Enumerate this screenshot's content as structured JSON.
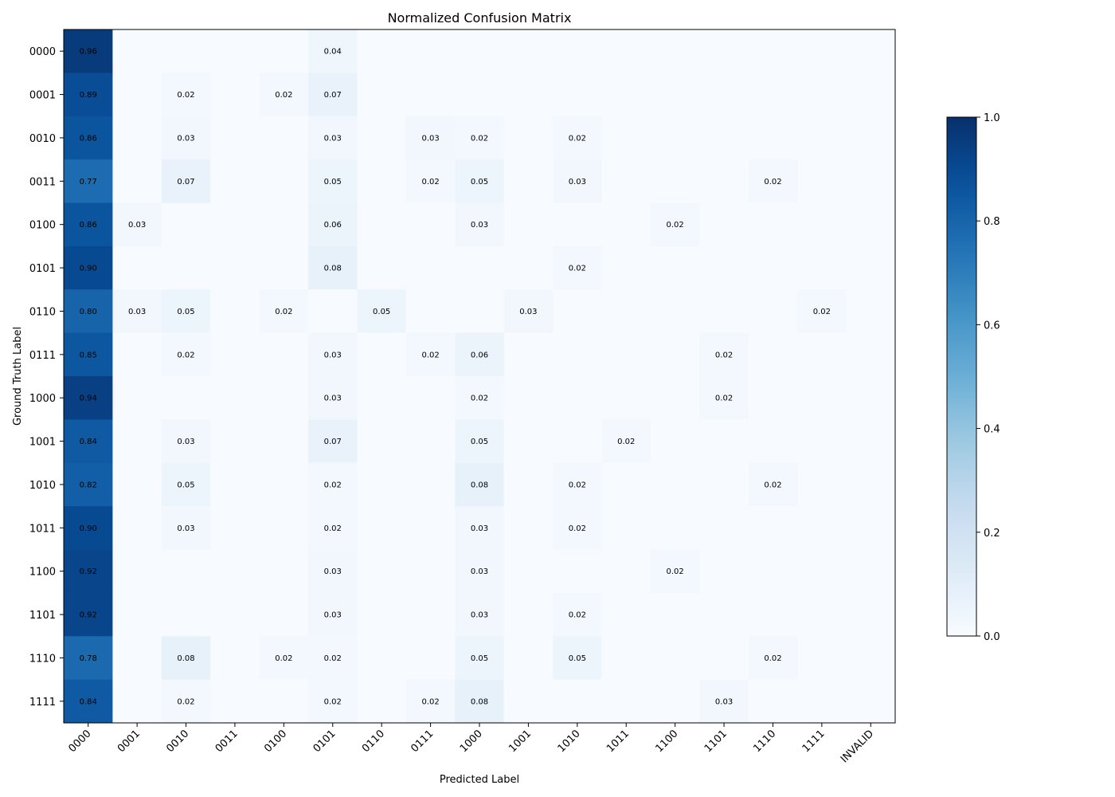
{
  "chart_data": {
    "type": "heatmap",
    "title": "Normalized Confusion Matrix",
    "xlabel": "Predicted Label",
    "ylabel": "Ground Truth Label",
    "x_categories": [
      "0000",
      "0001",
      "0010",
      "0011",
      "0100",
      "0101",
      "0110",
      "0111",
      "1000",
      "1001",
      "1010",
      "1011",
      "1100",
      "1101",
      "1110",
      "1111",
      "INVALID"
    ],
    "y_categories": [
      "0000",
      "0001",
      "0010",
      "0011",
      "0100",
      "0101",
      "0110",
      "0111",
      "1000",
      "1001",
      "1010",
      "1011",
      "1100",
      "1101",
      "1110",
      "1111"
    ],
    "values": [
      [
        0.96,
        0,
        0,
        0,
        0,
        0.04,
        0,
        0,
        0,
        0,
        0,
        0,
        0,
        0,
        0,
        0,
        0
      ],
      [
        0.89,
        0,
        0.02,
        0,
        0.02,
        0.07,
        0,
        0,
        0,
        0,
        0,
        0,
        0,
        0,
        0,
        0,
        0
      ],
      [
        0.86,
        0,
        0.03,
        0,
        0,
        0.03,
        0,
        0.03,
        0.02,
        0,
        0.02,
        0,
        0,
        0,
        0,
        0,
        0
      ],
      [
        0.77,
        0,
        0.07,
        0,
        0,
        0.05,
        0,
        0.02,
        0.05,
        0,
        0.03,
        0,
        0,
        0,
        0.02,
        0,
        0
      ],
      [
        0.86,
        0.03,
        0,
        0,
        0,
        0.06,
        0,
        0,
        0.03,
        0,
        0,
        0,
        0.02,
        0,
        0,
        0,
        0
      ],
      [
        0.9,
        0,
        0,
        0,
        0,
        0.08,
        0,
        0,
        0,
        0,
        0.02,
        0,
        0,
        0,
        0,
        0,
        0
      ],
      [
        0.8,
        0.03,
        0.05,
        0,
        0.02,
        0,
        0.05,
        0,
        0,
        0.03,
        0,
        0,
        0,
        0,
        0,
        0.02,
        0
      ],
      [
        0.85,
        0,
        0.02,
        0,
        0,
        0.03,
        0,
        0.02,
        0.06,
        0,
        0,
        0,
        0,
        0.02,
        0,
        0,
        0
      ],
      [
        0.94,
        0,
        0,
        0,
        0,
        0.03,
        0,
        0,
        0.02,
        0,
        0,
        0,
        0,
        0.02,
        0,
        0,
        0
      ],
      [
        0.84,
        0,
        0.03,
        0,
        0,
        0.07,
        0,
        0,
        0.05,
        0,
        0,
        0.02,
        0,
        0,
        0,
        0,
        0
      ],
      [
        0.82,
        0,
        0.05,
        0,
        0,
        0.02,
        0,
        0,
        0.08,
        0,
        0.02,
        0,
        0,
        0,
        0.02,
        0,
        0
      ],
      [
        0.9,
        0,
        0.03,
        0,
        0,
        0.02,
        0,
        0,
        0.03,
        0,
        0.02,
        0,
        0,
        0,
        0,
        0,
        0
      ],
      [
        0.92,
        0,
        0,
        0,
        0,
        0.03,
        0,
        0,
        0.03,
        0,
        0,
        0,
        0.02,
        0,
        0,
        0,
        0
      ],
      [
        0.92,
        0,
        0,
        0,
        0,
        0.03,
        0,
        0,
        0.03,
        0,
        0.02,
        0,
        0,
        0,
        0,
        0,
        0
      ],
      [
        0.78,
        0,
        0.08,
        0,
        0.02,
        0.02,
        0,
        0,
        0.05,
        0,
        0.05,
        0,
        0,
        0,
        0.02,
        0,
        0
      ],
      [
        0.84,
        0,
        0.02,
        0,
        0,
        0.02,
        0,
        0.02,
        0.08,
        0,
        0,
        0,
        0,
        0.03,
        0,
        0,
        0
      ]
    ],
    "value_format": "2 decimals, zeros not shown",
    "colormap": "Blues",
    "colorbar": {
      "range": [
        0.0,
        1.0
      ],
      "ticks": [
        "0.0",
        "0.2",
        "0.4",
        "0.6",
        "0.8",
        "1.0"
      ]
    },
    "grid": false
  }
}
